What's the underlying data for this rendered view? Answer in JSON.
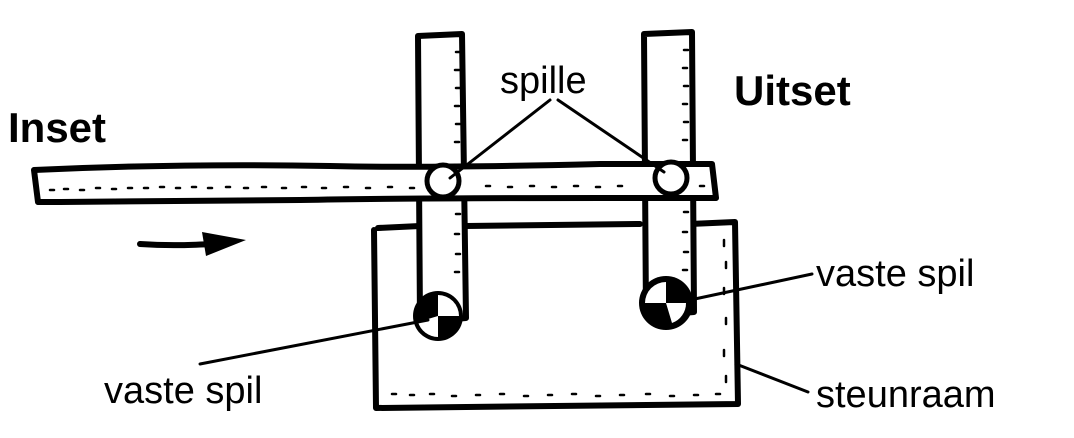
{
  "labels": {
    "inset": "Inset",
    "uitset": "Uitset",
    "spille": "spille",
    "vaste_spil_left": "vaste spil",
    "vaste_spil_right": "vaste spil",
    "steunraam": "steunraam"
  },
  "colors": {
    "ink": "#000000",
    "paper": "#ffffff"
  }
}
